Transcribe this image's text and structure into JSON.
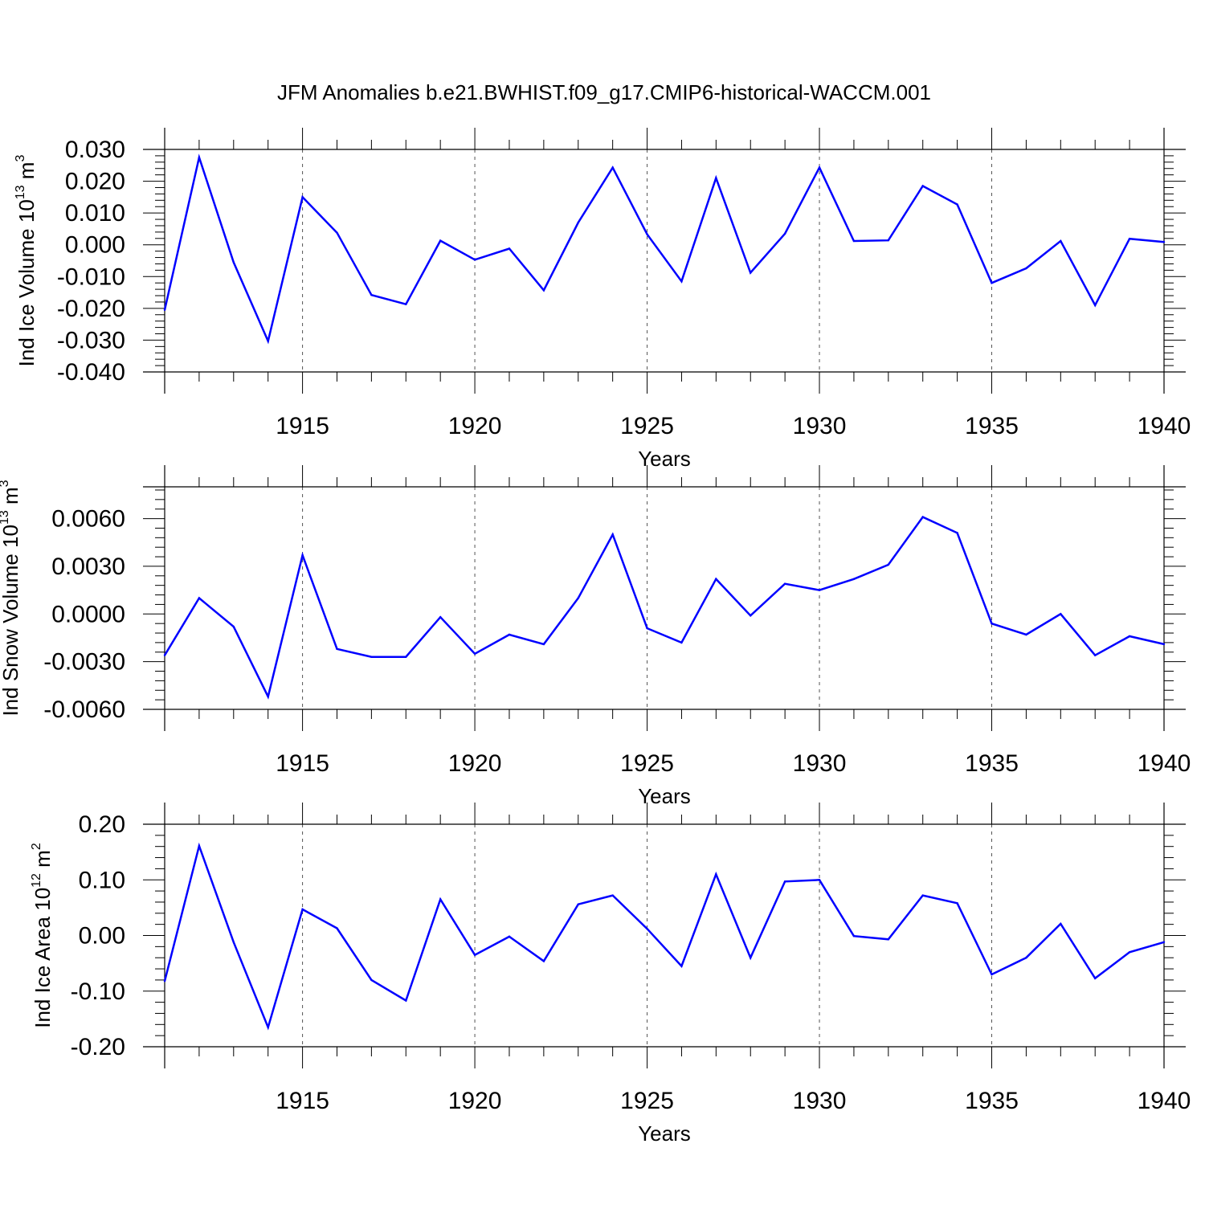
{
  "title": "JFM Anomalies b.e21.BWHIST.f09_g17.CMIP6-historical-WACCM.001",
  "colors": {
    "line": "#0000ff",
    "axis": "#000000",
    "grid": "#555555"
  },
  "chart_data": [
    {
      "type": "line",
      "xlabel": "Years",
      "ylabel": {
        "prefix": "Ind Ice Volume 10",
        "exp1": "13",
        "unit": " m",
        "exp2": "3"
      },
      "xlim": [
        1911,
        1940
      ],
      "ylim": [
        -0.04,
        0.03
      ],
      "xticks": [
        1915,
        1920,
        1925,
        1930,
        1935,
        1940
      ],
      "yticks": [
        -0.04,
        -0.03,
        -0.02,
        -0.01,
        0.0,
        0.01,
        0.02,
        0.03
      ],
      "ytick_labels": [
        "-0.040",
        "-0.030",
        "-0.020",
        "-0.010",
        "0.000",
        "0.010",
        "0.020",
        "0.030"
      ],
      "x": [
        1911,
        1912,
        1913,
        1914,
        1915,
        1916,
        1917,
        1918,
        1919,
        1920,
        1921,
        1922,
        1923,
        1924,
        1925,
        1926,
        1927,
        1928,
        1929,
        1930,
        1931,
        1932,
        1933,
        1934,
        1935,
        1936,
        1937,
        1938,
        1939,
        1940
      ],
      "values": [
        -0.0205,
        0.0275,
        -0.0055,
        -0.0303,
        0.015,
        0.0038,
        -0.0158,
        -0.0187,
        0.0013,
        -0.0047,
        -0.0012,
        -0.0143,
        0.007,
        0.0243,
        0.0033,
        -0.0115,
        0.021,
        -0.0088,
        0.0035,
        0.0243,
        0.0012,
        0.0014,
        0.0185,
        0.0127,
        -0.012,
        -0.0074,
        0.0012,
        -0.019,
        0.0019,
        0.0009
      ]
    },
    {
      "type": "line",
      "xlabel": "Years",
      "ylabel": {
        "prefix": "Ind Snow Volume 10",
        "exp1": "13",
        "unit": " m",
        "exp2": "3"
      },
      "xlim": [
        1911,
        1940
      ],
      "ylim": [
        -0.006,
        0.008
      ],
      "xticks": [
        1915,
        1920,
        1925,
        1930,
        1935,
        1940
      ],
      "yticks": [
        -0.006,
        -0.003,
        0.0,
        0.003,
        0.006
      ],
      "ytick_labels": [
        "-0.0060",
        "-0.0030",
        "0.0000",
        "0.0030",
        "0.0060"
      ],
      "x": [
        1911,
        1912,
        1913,
        1914,
        1915,
        1916,
        1917,
        1918,
        1919,
        1920,
        1921,
        1922,
        1923,
        1924,
        1925,
        1926,
        1927,
        1928,
        1929,
        1930,
        1931,
        1932,
        1933,
        1934,
        1935,
        1936,
        1937,
        1938,
        1939,
        1940
      ],
      "values": [
        -0.0026,
        0.001,
        -0.0008,
        -0.0052,
        0.0037,
        -0.0022,
        -0.0027,
        -0.0027,
        -0.0002,
        -0.0025,
        -0.0013,
        -0.0019,
        0.001,
        0.005,
        -0.0009,
        -0.0018,
        0.0022,
        -0.0001,
        0.0019,
        0.0015,
        0.0022,
        0.0031,
        0.0061,
        0.0051,
        -0.0006,
        -0.0013,
        0.0,
        -0.0026,
        -0.0014,
        -0.0019
      ]
    },
    {
      "type": "line",
      "xlabel": "Years",
      "ylabel": {
        "prefix": "Ind Ice Area 10",
        "exp1": "12",
        "unit": " m",
        "exp2": "2"
      },
      "xlim": [
        1911,
        1940
      ],
      "ylim": [
        -0.2,
        0.2
      ],
      "xticks": [
        1915,
        1920,
        1925,
        1930,
        1935,
        1940
      ],
      "yticks": [
        -0.2,
        -0.1,
        0.0,
        0.1,
        0.2
      ],
      "ytick_labels": [
        "-0.20",
        "-0.10",
        "0.00",
        "0.10",
        "0.20"
      ],
      "x": [
        1911,
        1912,
        1913,
        1914,
        1915,
        1916,
        1917,
        1918,
        1919,
        1920,
        1921,
        1922,
        1923,
        1924,
        1925,
        1926,
        1927,
        1928,
        1929,
        1930,
        1931,
        1932,
        1933,
        1934,
        1935,
        1936,
        1937,
        1938,
        1939,
        1940
      ],
      "values": [
        -0.082,
        0.161,
        -0.012,
        -0.165,
        0.047,
        0.013,
        -0.08,
        -0.117,
        0.065,
        -0.035,
        -0.002,
        -0.046,
        0.056,
        0.072,
        0.012,
        -0.055,
        0.11,
        -0.04,
        0.097,
        0.1,
        -0.001,
        -0.007,
        0.072,
        0.058,
        -0.07,
        -0.04,
        0.021,
        -0.077,
        -0.03,
        -0.012
      ]
    }
  ]
}
